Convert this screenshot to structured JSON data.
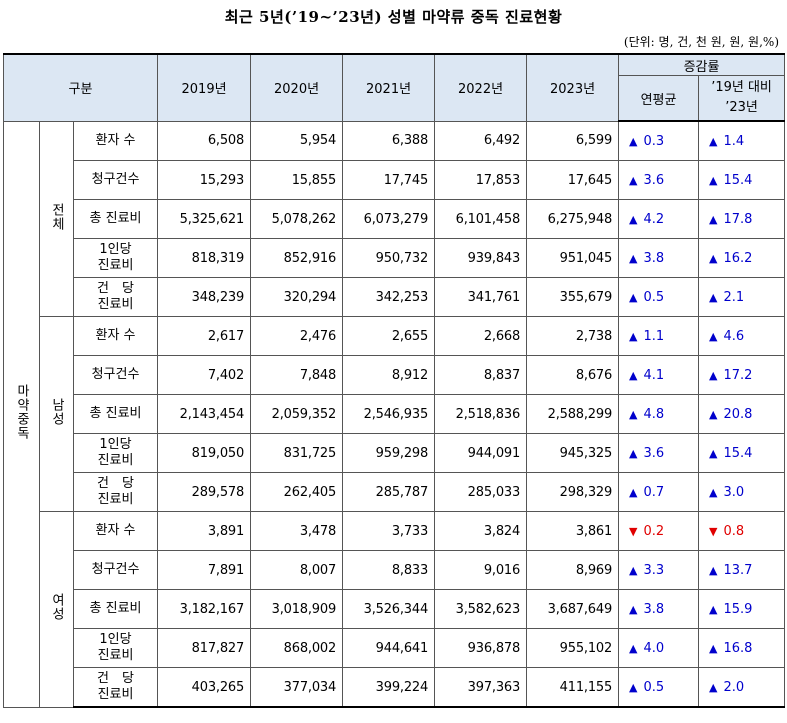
{
  "title": "최근 5년(’19~’23년) 성별 마약류 중독 진료현황",
  "unit": "(단위: 명, 건, 천 원, 원, 원,%)",
  "header": {
    "category": "구분",
    "years": [
      "2019년",
      "2020년",
      "2021년",
      "2022년",
      "2023년"
    ],
    "change_group": "증감률",
    "avg_label": "연평균",
    "vs_label_1": "’19년 대비",
    "vs_label_2": "’23년"
  },
  "outer_group": "마약중독",
  "groups": [
    {
      "name": "전체",
      "rows": [
        {
          "item": "환자 수",
          "values": [
            "6,508",
            "5,954",
            "6,388",
            "6,492",
            "6,599"
          ],
          "avg": "0.3",
          "avg_dir": "up",
          "vs": "1.4",
          "vs_dir": "up"
        },
        {
          "item": "청구건수",
          "values": [
            "15,293",
            "15,855",
            "17,745",
            "17,853",
            "17,645"
          ],
          "avg": "3.6",
          "avg_dir": "up",
          "vs": "15.4",
          "vs_dir": "up"
        },
        {
          "item": "총 진료비",
          "values": [
            "5,325,621",
            "5,078,262",
            "6,073,279",
            "6,101,458",
            "6,275,948"
          ],
          "avg": "4.2",
          "avg_dir": "up",
          "vs": "17.8",
          "vs_dir": "up"
        },
        {
          "item": "1인당\n진료비",
          "values": [
            "818,319",
            "852,916",
            "950,732",
            "939,843",
            "951,045"
          ],
          "avg": "3.8",
          "avg_dir": "up",
          "vs": "16.2",
          "vs_dir": "up"
        },
        {
          "item": "건　당\n진료비",
          "values": [
            "348,239",
            "320,294",
            "342,253",
            "341,761",
            "355,679"
          ],
          "avg": "0.5",
          "avg_dir": "up",
          "vs": "2.1",
          "vs_dir": "up"
        }
      ]
    },
    {
      "name": "남성",
      "rows": [
        {
          "item": "환자 수",
          "values": [
            "2,617",
            "2,476",
            "2,655",
            "2,668",
            "2,738"
          ],
          "avg": "1.1",
          "avg_dir": "up",
          "vs": "4.6",
          "vs_dir": "up"
        },
        {
          "item": "청구건수",
          "values": [
            "7,402",
            "7,848",
            "8,912",
            "8,837",
            "8,676"
          ],
          "avg": "4.1",
          "avg_dir": "up",
          "vs": "17.2",
          "vs_dir": "up"
        },
        {
          "item": "총 진료비",
          "values": [
            "2,143,454",
            "2,059,352",
            "2,546,935",
            "2,518,836",
            "2,588,299"
          ],
          "avg": "4.8",
          "avg_dir": "up",
          "vs": "20.8",
          "vs_dir": "up"
        },
        {
          "item": "1인당\n진료비",
          "values": [
            "819,050",
            "831,725",
            "959,298",
            "944,091",
            "945,325"
          ],
          "avg": "3.6",
          "avg_dir": "up",
          "vs": "15.4",
          "vs_dir": "up"
        },
        {
          "item": "건　당\n진료비",
          "values": [
            "289,578",
            "262,405",
            "285,787",
            "285,033",
            "298,329"
          ],
          "avg": "0.7",
          "avg_dir": "up",
          "vs": "3.0",
          "vs_dir": "up"
        }
      ]
    },
    {
      "name": "여성",
      "rows": [
        {
          "item": "환자 수",
          "values": [
            "3,891",
            "3,478",
            "3,733",
            "3,824",
            "3,861"
          ],
          "avg": "0.2",
          "avg_dir": "down",
          "vs": "0.8",
          "vs_dir": "down"
        },
        {
          "item": "청구건수",
          "values": [
            "7,891",
            "8,007",
            "8,833",
            "9,016",
            "8,969"
          ],
          "avg": "3.3",
          "avg_dir": "up",
          "vs": "13.7",
          "vs_dir": "up"
        },
        {
          "item": "총 진료비",
          "values": [
            "3,182,167",
            "3,018,909",
            "3,526,344",
            "3,582,623",
            "3,687,649"
          ],
          "avg": "3.8",
          "avg_dir": "up",
          "vs": "15.9",
          "vs_dir": "up"
        },
        {
          "item": "1인당\n진료비",
          "values": [
            "817,827",
            "868,002",
            "944,641",
            "936,878",
            "955,102"
          ],
          "avg": "4.0",
          "avg_dir": "up",
          "vs": "16.8",
          "vs_dir": "up"
        },
        {
          "item": "건　당\n진료비",
          "values": [
            "403,265",
            "377,034",
            "399,224",
            "397,363",
            "411,155"
          ],
          "avg": "0.5",
          "avg_dir": "up",
          "vs": "2.0",
          "vs_dir": "up"
        }
      ]
    }
  ],
  "icons": {
    "up": "triangle-up-icon",
    "down": "triangle-down-icon"
  },
  "colors": {
    "header_bg": "#dce7f3",
    "up": "#0000cc",
    "down": "#e00000"
  }
}
